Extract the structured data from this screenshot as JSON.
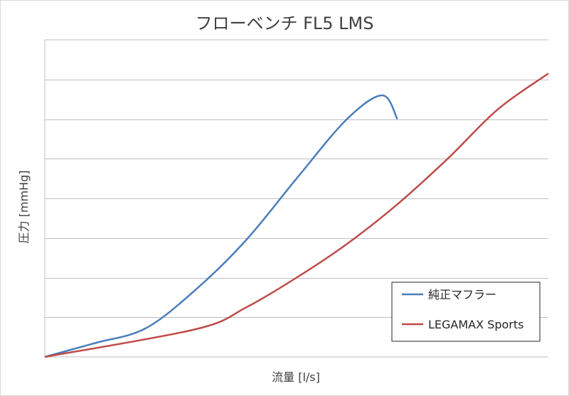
{
  "chart_data": {
    "type": "line",
    "title": "フローベンチ FL5 LMS",
    "xlabel": "流量 [l/s]",
    "ylabel": "圧力 [mmHg]",
    "xlim": [
      0,
      100
    ],
    "ylim": [
      0,
      7
    ],
    "y_gridlines": [
      1,
      2,
      3,
      4,
      5,
      6,
      7
    ],
    "x_tick_labels_shown": false,
    "y_tick_labels_shown": false,
    "grid": true,
    "legend_position": "bottom-right",
    "series": [
      {
        "name": "純正マフラー",
        "color": "#4a7ebb",
        "x": [
          0,
          10,
          20,
          30,
          40,
          50,
          60,
          67,
          70
        ],
        "y": [
          0,
          0.35,
          0.72,
          1.7,
          2.95,
          4.5,
          6.0,
          6.6,
          6.0
        ]
      },
      {
        "name": "LEGAMAX Sports",
        "color": "#be4b48",
        "x": [
          0,
          30,
          40,
          50,
          60,
          70,
          80,
          90,
          100
        ],
        "y": [
          0,
          0.7,
          1.25,
          2.0,
          2.85,
          3.85,
          5.0,
          6.25,
          7.15
        ]
      }
    ]
  }
}
